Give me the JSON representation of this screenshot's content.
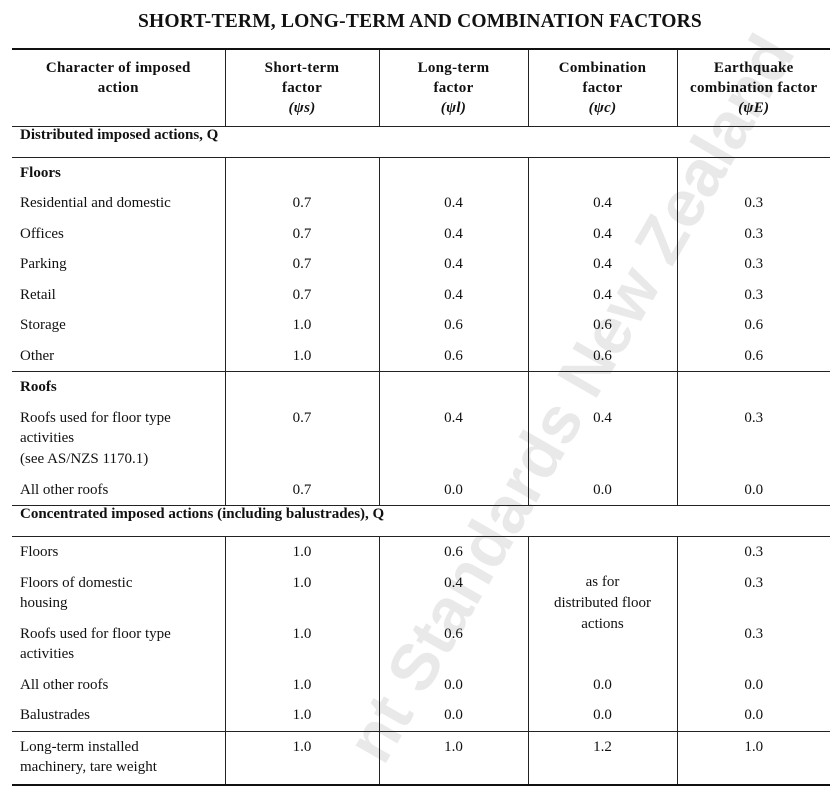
{
  "title": "SHORT-TERM, LONG-TERM AND COMBINATION FACTORS",
  "watermark": "nt Standards New Zealand",
  "headers": [
    {
      "line1": "Character of imposed",
      "line2": "action",
      "line3": ""
    },
    {
      "line1": "Short-term",
      "line2": "factor",
      "line3": "(ψs)"
    },
    {
      "line1": "Long-term",
      "line2": "factor",
      "line3": "(ψl)"
    },
    {
      "line1": "Combination",
      "line2": "factor",
      "line3": "(ψc)"
    },
    {
      "line1": "Earthquake",
      "line2": "combination factor",
      "line3": "(ψE)"
    }
  ],
  "section1": "Distributed imposed actions, Q",
  "floors_heading": "Floors",
  "floors": [
    {
      "label": "Residential and domestic",
      "s": "0.7",
      "l": "0.4",
      "c": "0.4",
      "e": "0.3"
    },
    {
      "label": "Offices",
      "s": "0.7",
      "l": "0.4",
      "c": "0.4",
      "e": "0.3"
    },
    {
      "label": "Parking",
      "s": "0.7",
      "l": "0.4",
      "c": "0.4",
      "e": "0.3"
    },
    {
      "label": "Retail",
      "s": "0.7",
      "l": "0.4",
      "c": "0.4",
      "e": "0.3"
    },
    {
      "label": "Storage",
      "s": "1.0",
      "l": "0.6",
      "c": "0.6",
      "e": "0.6"
    },
    {
      "label": "Other",
      "s": "1.0",
      "l": "0.6",
      "c": "0.6",
      "e": "0.6"
    }
  ],
  "roofs_heading": "Roofs",
  "roofs": [
    {
      "label1": "Roofs used for floor type",
      "label2": "activities",
      "label3": "(see AS/NZS 1170.1)",
      "s": "0.7",
      "l": "0.4",
      "c": "0.4",
      "e": "0.3"
    },
    {
      "label1": "All other roofs",
      "s": "0.7",
      "l": "0.0",
      "c": "0.0",
      "e": "0.0"
    }
  ],
  "section2": "Concentrated imposed actions (including balustrades), Q",
  "conc": [
    {
      "label1": "Floors",
      "label2": "",
      "s": "1.0",
      "l": "0.6",
      "e": "0.3"
    },
    {
      "label1": "Floors of domestic",
      "label2": "housing",
      "s": "1.0",
      "l": "0.4",
      "e": "0.3"
    },
    {
      "label1": "Roofs used for floor type",
      "label2": "activities",
      "s": "1.0",
      "l": "0.6",
      "e": "0.3"
    }
  ],
  "conc_merged": {
    "line1": "as for",
    "line2": "distributed floor",
    "line3": "actions"
  },
  "conc2": [
    {
      "label": "All other roofs",
      "s": "1.0",
      "l": "0.0",
      "c": "0.0",
      "e": "0.0"
    },
    {
      "label": "Balustrades",
      "s": "1.0",
      "l": "0.0",
      "c": "0.0",
      "e": "0.0"
    }
  ],
  "machinery": {
    "label1": "Long-term installed",
    "label2": "machinery, tare weight",
    "s": "1.0",
    "l": "1.0",
    "c": "1.2",
    "e": "1.0"
  }
}
